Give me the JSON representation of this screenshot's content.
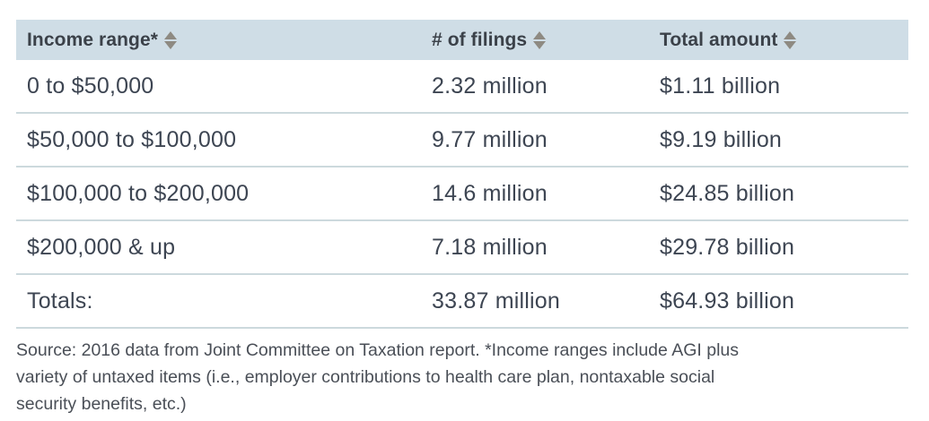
{
  "chart_data": {
    "type": "table",
    "title": "",
    "columns": [
      "Income range*",
      "# of filings",
      "Total amount"
    ],
    "rows": [
      [
        "0 to $50,000",
        "2.32 million",
        "$1.11 billion"
      ],
      [
        "$50,000 to $100,000",
        "9.77 million",
        "$9.19 billion"
      ],
      [
        "$100,000 to $200,000",
        "14.6 million",
        "$24.85 billion"
      ],
      [
        "$200,000 & up",
        "7.18 million",
        "$29.78 billion"
      ],
      [
        "Totals:",
        "33.87 million",
        "$64.93 billion"
      ]
    ],
    "filings_millions": [
      2.32,
      9.77,
      14.6,
      7.18,
      33.87
    ],
    "total_amount_billions": [
      1.11,
      9.19,
      24.85,
      29.78,
      64.93
    ],
    "sortable_columns": true,
    "source_note": "Source: 2016 data from Joint Committee on Taxation report. *Income ranges include AGI plus variety of untaxed items (i.e., employer contributions to health care plan, nontaxable social security benefits, etc.)",
    "source_note_lines": [
      "Source: 2016 data from Joint Committee on Taxation report. *Income ranges include AGI plus",
      "variety of untaxed items (i.e., employer contributions to health care plan, nontaxable social",
      "security benefits, etc.)"
    ]
  },
  "colors": {
    "header_background": "#cfdde6",
    "row_divider": "#ccd9dd",
    "header_text": "#3b4149",
    "cell_text": "#3d4552",
    "source_text": "#4a4f57",
    "sort_icon": "#8e8a82"
  }
}
